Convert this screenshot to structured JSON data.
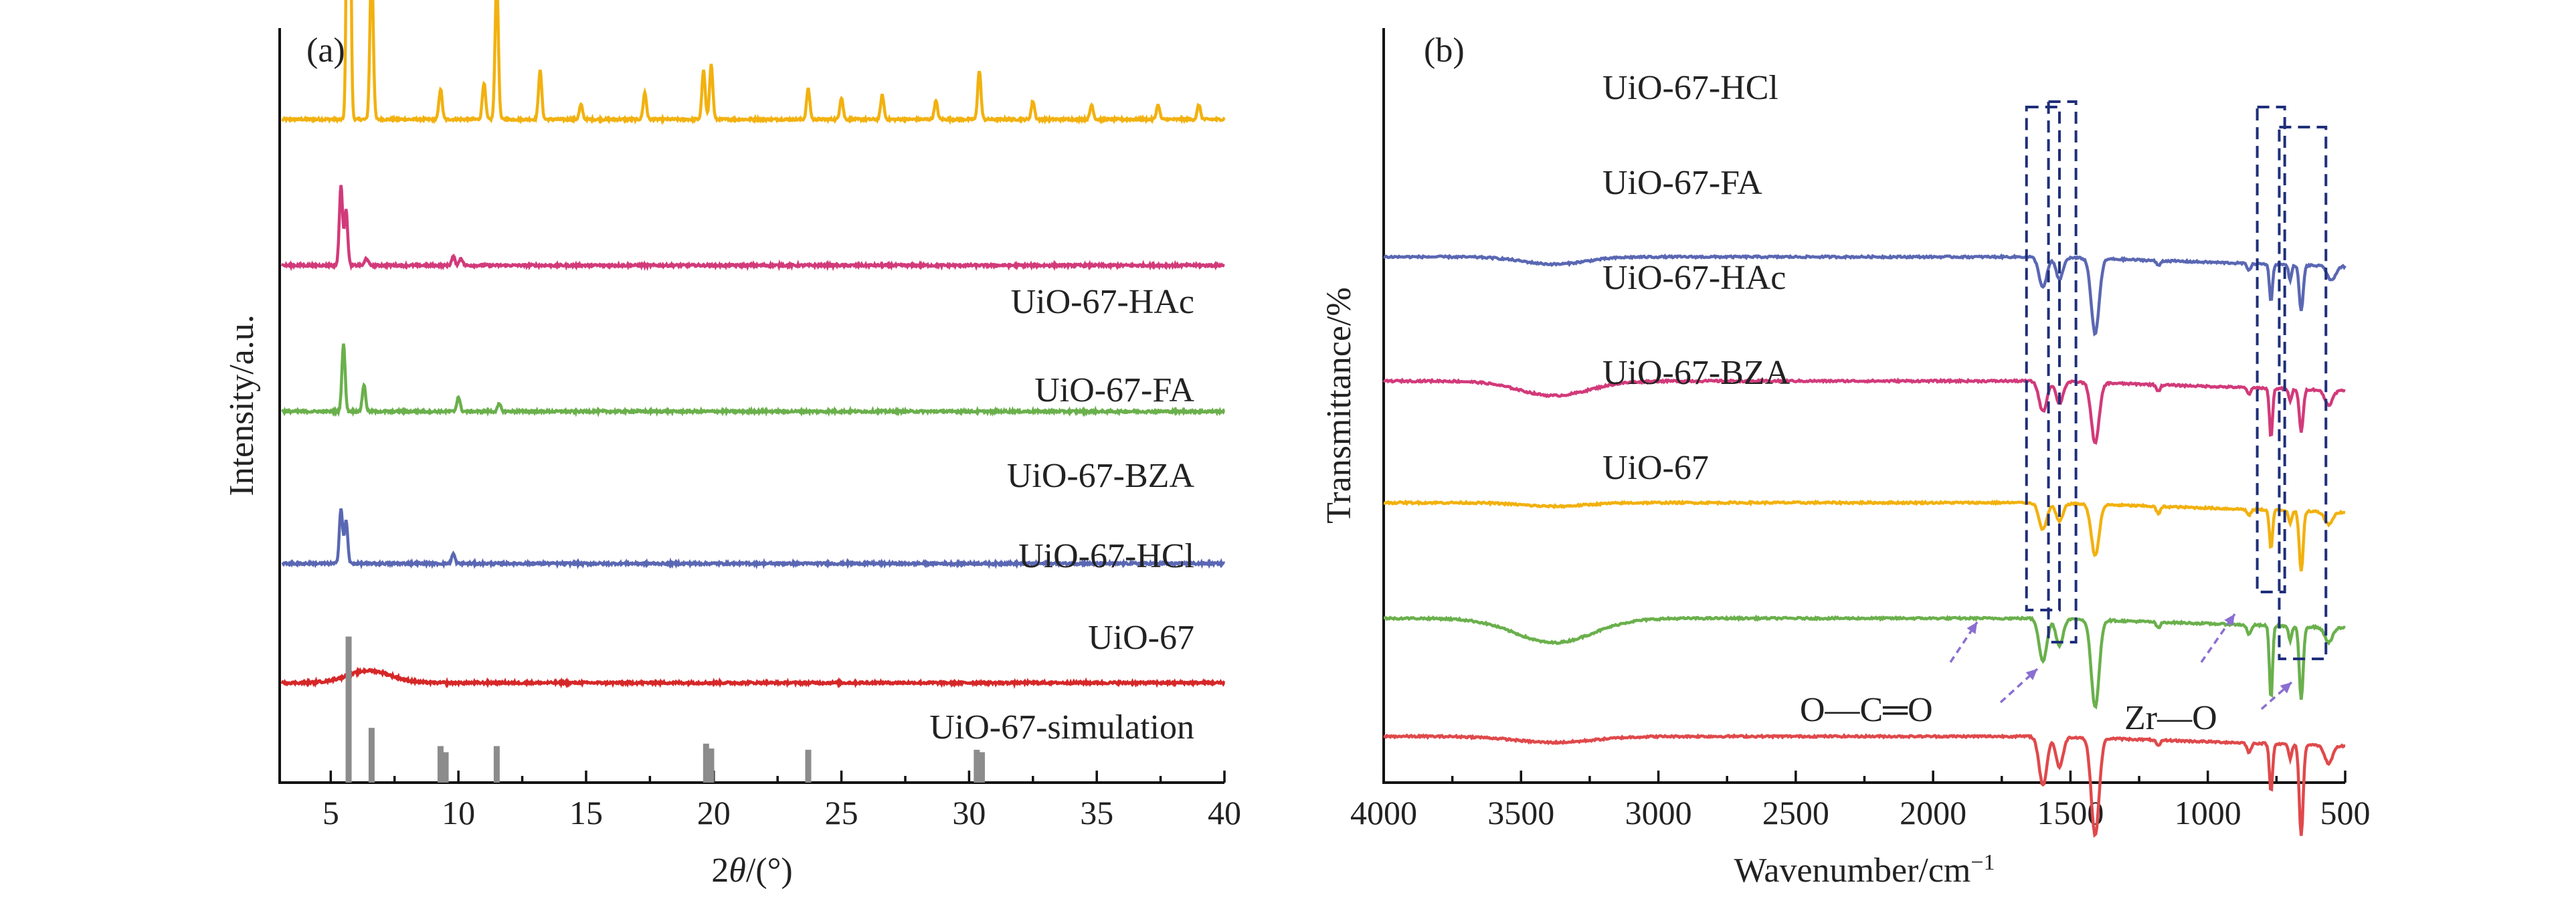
{
  "chart_data": [
    {
      "panel": "(a)",
      "type": "line",
      "xlabel": "2θ/(°)",
      "ylabel": "Intensity/a.u.",
      "xlim": [
        3,
        40
      ],
      "x_ticks": [
        5,
        10,
        15,
        20,
        25,
        30,
        35,
        40
      ],
      "grid": false,
      "series": [
        {
          "name": "UiO-67-HAc",
          "color": "#f2b10f",
          "offset": 5.45,
          "peaks": [
            [
              5.7,
              4.3
            ],
            [
              6.6,
              1.3
            ],
            [
              9.3,
              0.25
            ],
            [
              11.0,
              0.3
            ],
            [
              11.5,
              1.15
            ],
            [
              13.2,
              0.4
            ],
            [
              14.8,
              0.12
            ],
            [
              17.3,
              0.22
            ],
            [
              19.6,
              0.4
            ],
            [
              19.9,
              0.45
            ],
            [
              23.7,
              0.25
            ],
            [
              25.0,
              0.18
            ],
            [
              26.6,
              0.2
            ],
            [
              28.7,
              0.15
            ],
            [
              30.4,
              0.4
            ],
            [
              32.5,
              0.15
            ],
            [
              34.8,
              0.12
            ],
            [
              37.4,
              0.12
            ],
            [
              39.0,
              0.12
            ]
          ]
        },
        {
          "name": "UiO-67-FA",
          "color": "#d23a7a",
          "offset": 4.25,
          "peaks": [
            [
              5.4,
              0.65
            ],
            [
              5.6,
              0.45
            ],
            [
              6.4,
              0.06
            ],
            [
              9.8,
              0.07
            ],
            [
              10.1,
              0.06
            ]
          ]
        },
        {
          "name": "UiO-67-BZA",
          "color": "#6ab04c",
          "offset": 3.05,
          "peaks": [
            [
              5.5,
              0.55
            ],
            [
              6.3,
              0.22
            ],
            [
              10.0,
              0.12
            ],
            [
              11.6,
              0.06
            ]
          ]
        },
        {
          "name": "UiO-67-HCl",
          "color": "#5a67b3",
          "offset": 1.8,
          "peaks": [
            [
              5.4,
              0.45
            ],
            [
              5.6,
              0.35
            ],
            [
              9.8,
              0.08
            ]
          ]
        },
        {
          "name": "UiO-67",
          "color": "#d62728",
          "offset": 0.82,
          "broad": [
            [
              6.5,
              0.1,
              1.2
            ]
          ]
        },
        {
          "name": "UiO-67-simulation",
          "color": "#8c8c8c",
          "type": "stick",
          "sticks": [
            [
              5.7,
              1.2
            ],
            [
              6.6,
              0.45
            ],
            [
              9.3,
              0.3
            ],
            [
              9.5,
              0.25
            ],
            [
              11.5,
              0.3
            ],
            [
              19.7,
              0.32
            ],
            [
              19.9,
              0.28
            ],
            [
              23.7,
              0.27
            ],
            [
              30.3,
              0.27
            ],
            [
              30.5,
              0.25
            ]
          ]
        }
      ]
    },
    {
      "panel": "(b)",
      "type": "line",
      "xlabel": "Wavenumber/cm⁻¹",
      "ylabel": "Transmittance/%",
      "xlim": [
        4000,
        500
      ],
      "x_reversed": true,
      "x_ticks": [
        4000,
        3500,
        3000,
        2500,
        2000,
        1500,
        1000,
        500
      ],
      "grid": false,
      "annotations": [
        "O—C═O",
        "Zr—O"
      ],
      "series": [
        {
          "name": "UiO-67-HCl",
          "color": "#5a67b3",
          "offset": 4.32,
          "dips": [
            [
              3380,
              0.06,
              160
            ],
            [
              1600,
              0.25,
              20
            ],
            [
              1540,
              0.18,
              18
            ],
            [
              1410,
              0.62,
              20
            ],
            [
              1180,
              0.04,
              10
            ],
            [
              850,
              0.05,
              10
            ],
            [
              770,
              0.3,
              8
            ],
            [
              700,
              0.12,
              8
            ],
            [
              660,
              0.38,
              10
            ],
            [
              550,
              0.12,
              20
            ]
          ]
        },
        {
          "name": "UiO-67-FA",
          "color": "#d23a7a",
          "offset": 3.3,
          "dips": [
            [
              3380,
              0.12,
              180
            ],
            [
              1600,
              0.25,
              20
            ],
            [
              1540,
              0.18,
              18
            ],
            [
              1410,
              0.5,
              20
            ],
            [
              1180,
              0.05,
              10
            ],
            [
              850,
              0.05,
              10
            ],
            [
              770,
              0.4,
              8
            ],
            [
              700,
              0.1,
              8
            ],
            [
              660,
              0.35,
              10
            ],
            [
              560,
              0.12,
              20
            ]
          ]
        },
        {
          "name": "UiO-67-HAc",
          "color": "#f2b10f",
          "offset": 2.3,
          "dips": [
            [
              3380,
              0.03,
              160
            ],
            [
              1600,
              0.22,
              20
            ],
            [
              1540,
              0.15,
              18
            ],
            [
              1410,
              0.42,
              20
            ],
            [
              1180,
              0.06,
              10
            ],
            [
              850,
              0.05,
              10
            ],
            [
              770,
              0.32,
              8
            ],
            [
              700,
              0.1,
              8
            ],
            [
              660,
              0.5,
              10
            ],
            [
              560,
              0.1,
              20
            ]
          ]
        },
        {
          "name": "UiO-67-BZA",
          "color": "#6ab04c",
          "offset": 1.35,
          "dips": [
            [
              3380,
              0.2,
              200
            ],
            [
              1600,
              0.35,
              20
            ],
            [
              1540,
              0.22,
              18
            ],
            [
              1410,
              0.72,
              20
            ],
            [
              1180,
              0.05,
              10
            ],
            [
              850,
              0.08,
              10
            ],
            [
              770,
              0.6,
              8
            ],
            [
              700,
              0.12,
              8
            ],
            [
              660,
              0.6,
              10
            ],
            [
              560,
              0.12,
              20
            ]
          ]
        },
        {
          "name": "UiO-67",
          "color": "#e0494b",
          "offset": 0.38,
          "dips": [
            [
              3380,
              0.05,
              200
            ],
            [
              1600,
              0.4,
              20
            ],
            [
              1540,
              0.25,
              18
            ],
            [
              1410,
              0.8,
              20
            ],
            [
              1180,
              0.05,
              10
            ],
            [
              850,
              0.08,
              10
            ],
            [
              770,
              0.4,
              8
            ],
            [
              700,
              0.12,
              8
            ],
            [
              660,
              0.75,
              10
            ],
            [
              560,
              0.15,
              20
            ]
          ]
        }
      ]
    }
  ]
}
